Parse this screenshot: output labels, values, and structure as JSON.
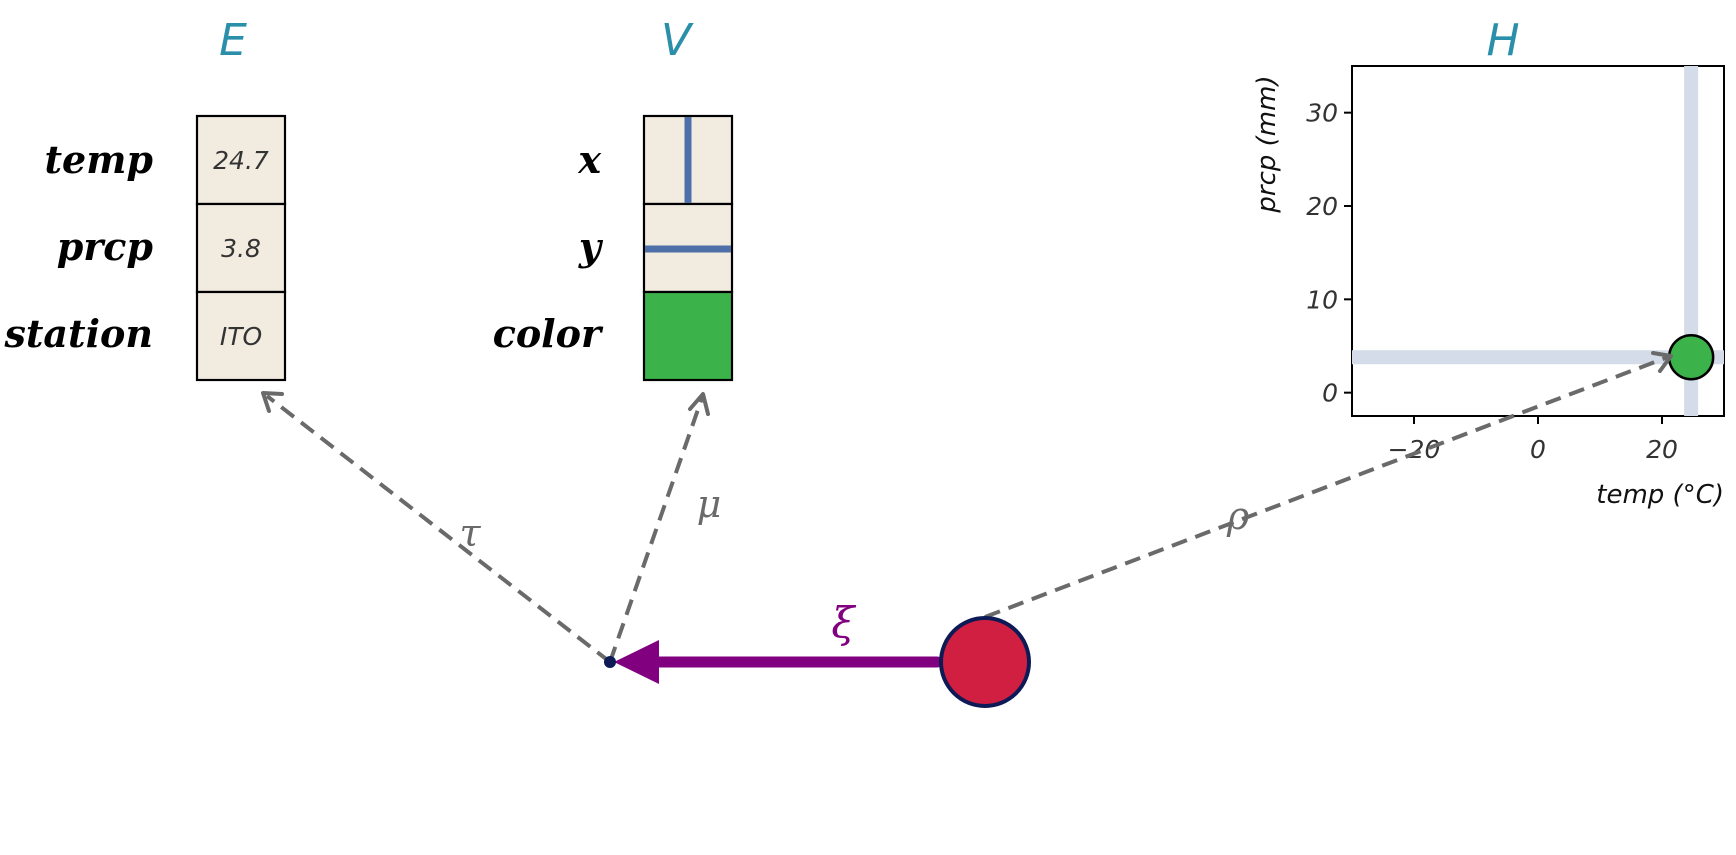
{
  "sections": {
    "E": "E",
    "V": "V",
    "H": "H"
  },
  "E_table": {
    "rows": [
      {
        "label": "temp",
        "value": "24.7"
      },
      {
        "label": "prcp",
        "value": "3.8"
      },
      {
        "label": "station",
        "value": "ITO"
      }
    ]
  },
  "V_table": {
    "rows": [
      {
        "label": "x",
        "encoding": "vertical-position-line"
      },
      {
        "label": "y",
        "encoding": "horizontal-position-line"
      },
      {
        "label": "color",
        "encoding": "color-fill"
      }
    ],
    "line_color": "#4f6fa8",
    "fill_color": "#3cb34a"
  },
  "arrows": {
    "tau": "τ",
    "mu": "μ",
    "rho": "ρ",
    "xi": "ξ"
  },
  "colors": {
    "source_circle": "#d11f41",
    "source_circle_stroke": "#0d1a55",
    "xi_arrow": "#800080",
    "dashed_arrow": "#6a6a6a",
    "section_title": "#2a8fa8",
    "point": "#3cb34a",
    "highlight_band": "#d3dce8"
  },
  "chart_data": {
    "type": "scatter",
    "title": "H",
    "xlabel": "temp (°C)",
    "ylabel": "prcp (mm)",
    "xlim": [
      -30,
      30
    ],
    "ylim": [
      -2.5,
      35
    ],
    "xticks": [
      -20,
      0,
      20
    ],
    "yticks": [
      0,
      10,
      20,
      30
    ],
    "xtick_labels": [
      "−20",
      "0",
      "20"
    ],
    "ytick_labels": [
      "0",
      "10",
      "20",
      "30"
    ],
    "grid": false,
    "points": [
      {
        "x": 24.7,
        "y": 3.8,
        "color": "#3cb34a"
      }
    ],
    "highlight_lines": {
      "x": 24.7,
      "y": 3.8
    }
  }
}
